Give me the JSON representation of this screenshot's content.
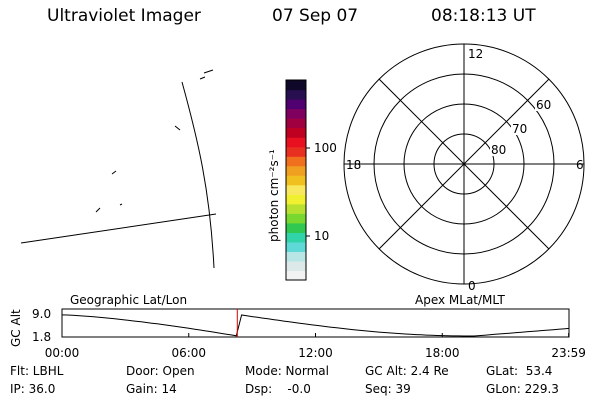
{
  "header": {
    "instrument": "Ultraviolet Imager",
    "date": "07 Sep 07",
    "time": "08:18:13 UT"
  },
  "colorbar": {
    "unit": "photon cm⁻²s⁻¹",
    "ticks": [
      "100",
      "10"
    ],
    "colors": [
      "#f2f2f2",
      "#dde8e8",
      "#b8e6e6",
      "#5fd8d8",
      "#30d4a8",
      "#30c850",
      "#78d830",
      "#b8e030",
      "#f0f030",
      "#f8e860",
      "#f0c020",
      "#f0a020",
      "#f07020",
      "#e83020",
      "#e81020",
      "#c00020",
      "#a00040",
      "#800060",
      "#500070",
      "#281050",
      "#100828"
    ]
  },
  "polar": {
    "mlt_labels": {
      "top": "12",
      "right": "6",
      "bottom": "0",
      "left": "18"
    },
    "lat_labels": [
      "60",
      "70",
      "80"
    ]
  },
  "timeline": {
    "ylabel": "GC Alt",
    "ymax": "9.0",
    "ymin": "1.8",
    "left_title": "Geographic Lat/Lon",
    "right_title": "Apex MLat/MLT",
    "xticks": [
      "00:00",
      "06:00",
      "12:00",
      "18:00",
      "23:59"
    ],
    "marker_hour": 8.3,
    "marker_color": "#e00000"
  },
  "footer": {
    "flt": "Flt: LBHL",
    "ip": "IP: 36.0",
    "door": "Door: Open",
    "gain": "Gain: 14",
    "mode": "Mode: Normal",
    "dsp": "Dsp:    -0.0",
    "gc_alt": "GC Alt: 2.4 Re",
    "seq": "Seq: 39",
    "glat": "GLat:  53.4",
    "glon": "GLon: 229.3"
  }
}
